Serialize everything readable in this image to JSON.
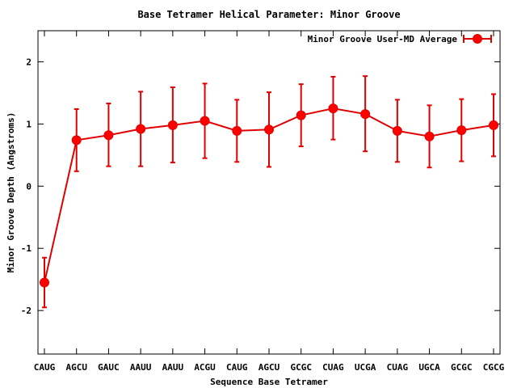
{
  "chart_data": {
    "type": "line",
    "title": "Base Tetramer Helical Parameter: Minor Groove",
    "xlabel": "Sequence Base Tetramer",
    "ylabel": "Minor Groove Depth (Angstroms)",
    "ylim": [
      -2.7,
      2.5
    ],
    "yticks": [
      -2,
      -1,
      0,
      1,
      2
    ],
    "categories": [
      "CAUG",
      "AGCU",
      "GAUC",
      "AAUU",
      "AAUU",
      "ACGU",
      "CAUG",
      "AGCU",
      "GCGC",
      "CUAG",
      "UCGA",
      "CUAG",
      "UGCA",
      "GCGC",
      "CGCG"
    ],
    "series": [
      {
        "name": "Minor Groove User-MD Average",
        "color": "#ff0000",
        "values": [
          -1.55,
          0.74,
          0.82,
          0.92,
          0.98,
          1.05,
          0.89,
          0.91,
          1.14,
          1.25,
          1.16,
          0.89,
          0.8,
          0.9,
          0.98
        ],
        "err_low": [
          -1.95,
          0.24,
          0.32,
          0.32,
          0.38,
          0.45,
          0.39,
          0.31,
          0.64,
          0.75,
          0.56,
          0.39,
          0.3,
          0.4,
          0.48
        ],
        "err_high": [
          -1.15,
          1.24,
          1.33,
          1.52,
          1.59,
          1.65,
          1.39,
          1.51,
          1.64,
          1.76,
          1.77,
          1.39,
          1.3,
          1.4,
          1.48
        ]
      }
    ],
    "legend_position": "top-right",
    "grid": false
  }
}
